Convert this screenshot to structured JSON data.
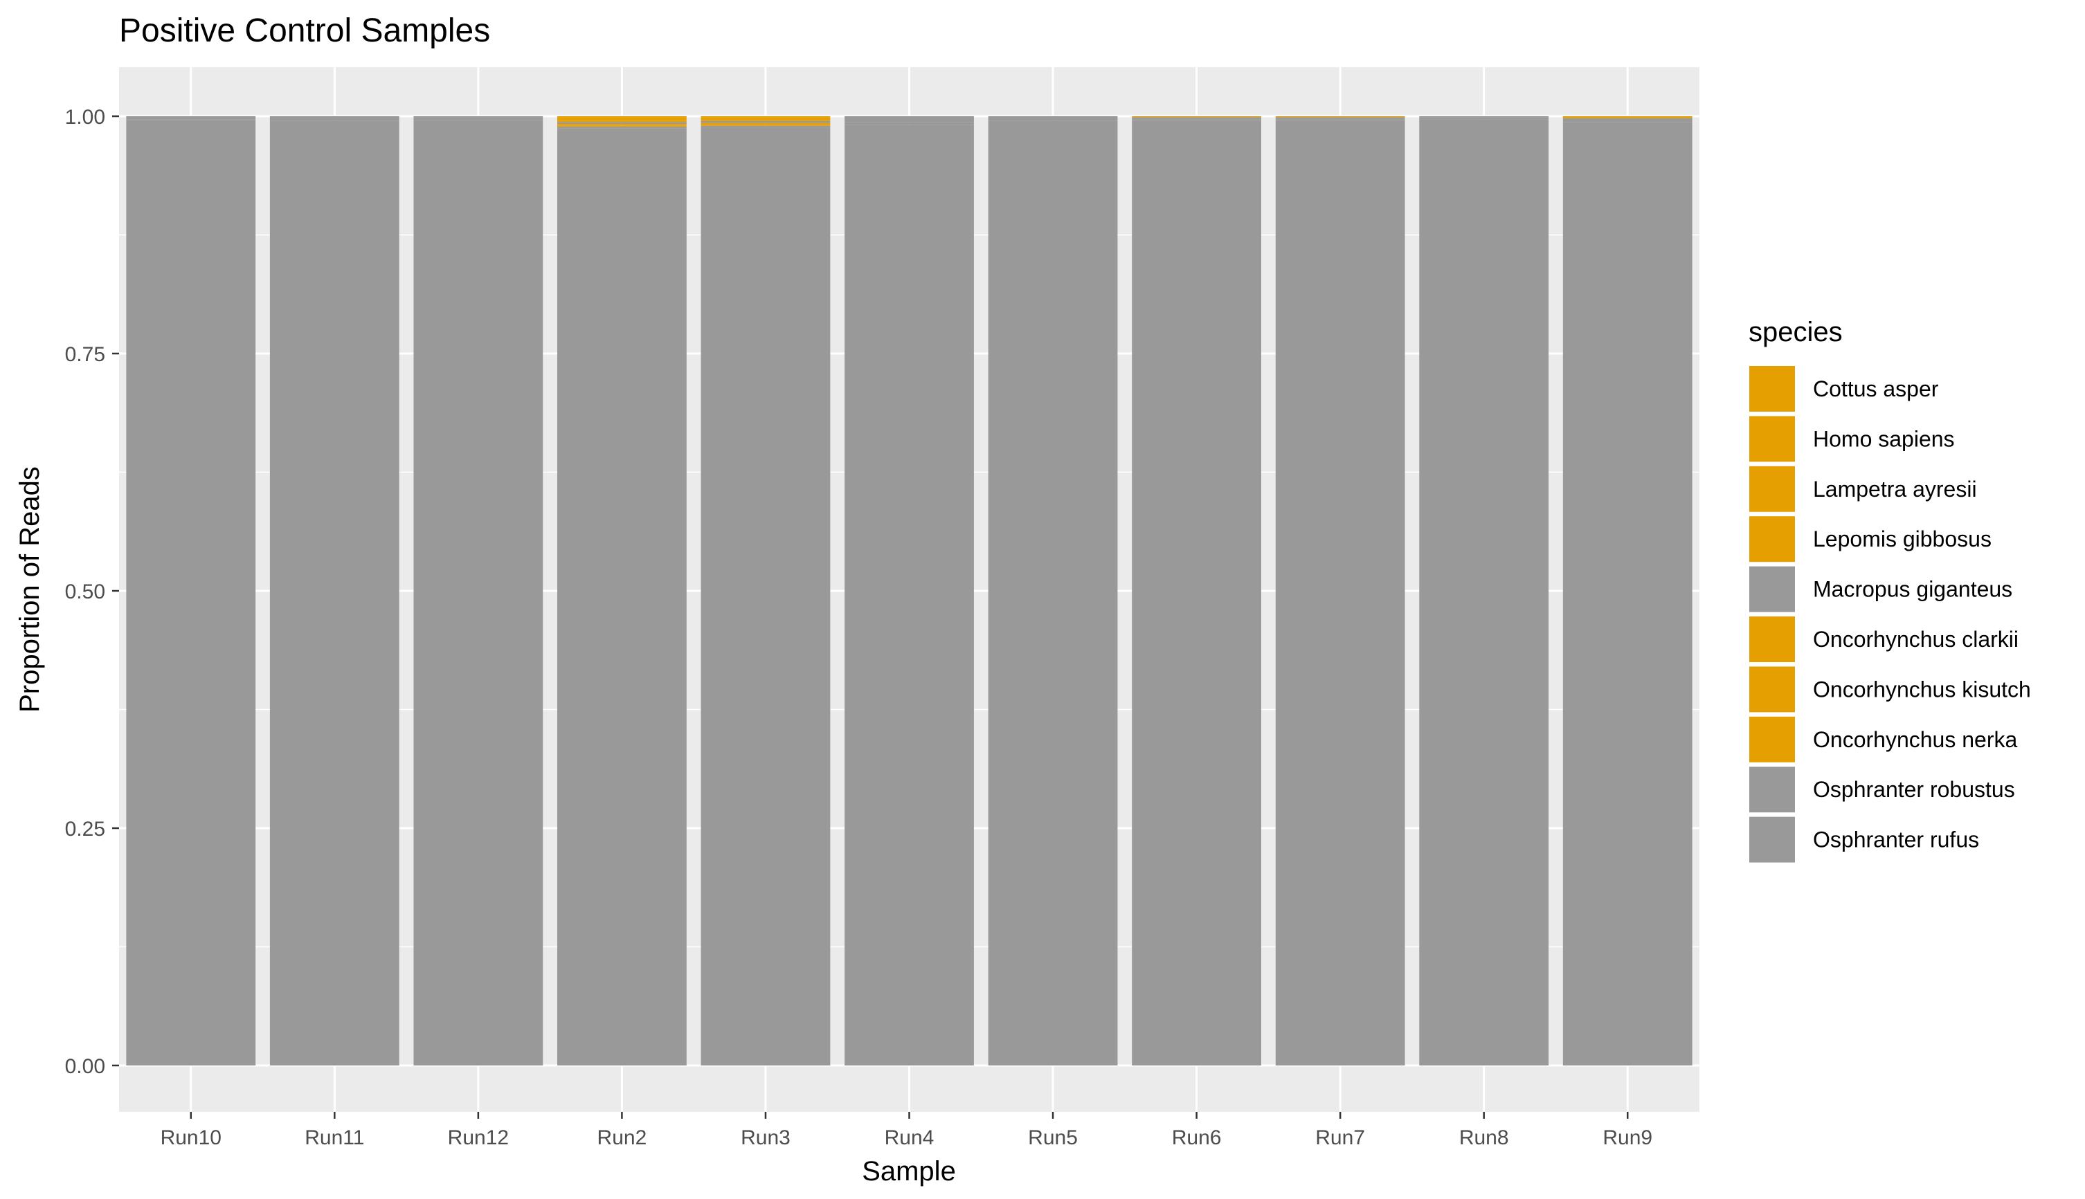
{
  "chart_data": {
    "type": "bar",
    "stacked": true,
    "title": "Positive Control Samples",
    "xlabel": "Sample",
    "ylabel": "Proportion of Reads",
    "ylim": [
      0,
      1.05
    ],
    "yticks": [
      "0.00",
      "0.25",
      "0.50",
      "0.75",
      "1.00"
    ],
    "ytick_values": [
      0,
      0.25,
      0.5,
      0.75,
      1.0
    ],
    "grid": true,
    "legend_position": "right",
    "legend_title": "species",
    "categories": [
      "Run10",
      "Run11",
      "Run12",
      "Run2",
      "Run3",
      "Run4",
      "Run5",
      "Run6",
      "Run7",
      "Run8",
      "Run9"
    ],
    "series": [
      {
        "name": "Cottus asper",
        "color": "#E69F00",
        "values": [
          0,
          0,
          0,
          0.001,
          0.001,
          0,
          0,
          0,
          0,
          0,
          0
        ]
      },
      {
        "name": "Homo sapiens",
        "color": "#E69F00",
        "values": [
          0,
          0,
          0,
          0.003,
          0.003,
          0,
          0,
          0.001,
          0.001,
          0,
          0.002
        ]
      },
      {
        "name": "Lampetra ayresii",
        "color": "#E69F00",
        "values": [
          0,
          0,
          0,
          0.001,
          0.001,
          0,
          0,
          0,
          0,
          0,
          0
        ]
      },
      {
        "name": "Lepomis gibbosus",
        "color": "#E69F00",
        "values": [
          0,
          0,
          0,
          0.001,
          0,
          0,
          0,
          0,
          0,
          0,
          0
        ]
      },
      {
        "name": "Macropus giganteus",
        "color": "#999999",
        "values": [
          0.003,
          0.005,
          0.002,
          0.002,
          0.002,
          0.006,
          0.005,
          0.002,
          0.002,
          0.001,
          0.002
        ]
      },
      {
        "name": "Oncorhynchus clarkii",
        "color": "#E69F00",
        "values": [
          0,
          0,
          0,
          0.001,
          0.001,
          0,
          0,
          0,
          0,
          0,
          0
        ]
      },
      {
        "name": "Oncorhynchus kisutch",
        "color": "#E69F00",
        "values": [
          0,
          0,
          0,
          0.001,
          0.001,
          0,
          0,
          0,
          0,
          0,
          0
        ]
      },
      {
        "name": "Oncorhynchus nerka",
        "color": "#E69F00",
        "values": [
          0,
          0,
          0,
          0.001,
          0.001,
          0,
          0,
          0,
          0,
          0,
          0
        ]
      },
      {
        "name": "Osphranter robustus",
        "color": "#999999",
        "values": [
          0.002,
          0.003,
          0.003,
          0.002,
          0.002,
          0.003,
          0.003,
          0.002,
          0.002,
          0.002,
          0.002
        ]
      },
      {
        "name": "Osphranter rufus",
        "color": "#999999",
        "values": [
          0.995,
          0.992,
          0.995,
          0.987,
          0.988,
          0.991,
          0.992,
          0.995,
          0.995,
          0.997,
          0.994
        ]
      }
    ]
  }
}
